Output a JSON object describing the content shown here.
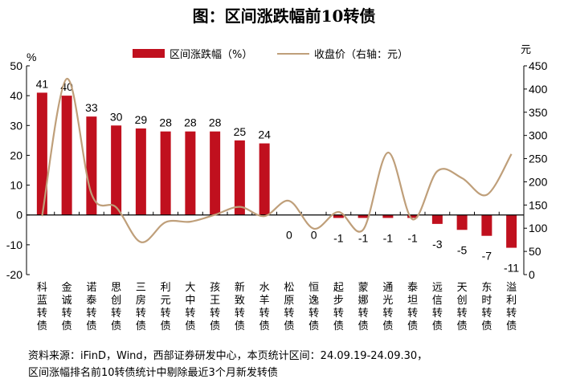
{
  "chart_data": {
    "type": "bar+line",
    "title": "图：区间涨跌幅前10转债",
    "left_unit": "%",
    "right_unit": "元",
    "categories": [
      "科蓝转债",
      "金诚转债",
      "诺泰转债",
      "思创转债",
      "三房转债",
      "利元转债",
      "大中转债",
      "孩王转债",
      "新致转债",
      "水羊转债",
      "松原转债",
      "恒逸转债",
      "起步转债",
      "蒙娜转债",
      "通光转债",
      "泰坦转债",
      "远信转债",
      "天创转债",
      "东时转债",
      "溢利转债"
    ],
    "series": [
      {
        "name": "区间涨跌幅（%）",
        "type": "bar",
        "axis": "left",
        "color": "#c0101e",
        "values": [
          41,
          40,
          33,
          30,
          29,
          28,
          28,
          28,
          25,
          24,
          0,
          0,
          -1,
          -1,
          -1,
          -1,
          -3,
          -5,
          -7,
          -11
        ]
      },
      {
        "name": "收盘价（右轴：元）",
        "type": "line",
        "axis": "right",
        "color": "#bf9f7a",
        "values": [
          126,
          422,
          174,
          145,
          70,
          113,
          114,
          129,
          146,
          126,
          159,
          99,
          135,
          97,
          263,
          119,
          223,
          208,
          172,
          260
        ]
      }
    ],
    "left_axis": {
      "min": -20,
      "max": 50,
      "ticks": [
        50,
        40,
        30,
        20,
        10,
        0,
        -10,
        -20
      ]
    },
    "right_axis": {
      "min": 0,
      "max": 450,
      "ticks": [
        450,
        400,
        350,
        300,
        250,
        200,
        150,
        100,
        50,
        0
      ]
    },
    "legend": "top",
    "grid": false
  },
  "footer": {
    "line1": "资料来源：iFinD，Wind，西部证券研发中心，本页统计区间：24.09.19-24.09.30，",
    "line2": "区间涨幅排名前10转债统计中剔除最近3个月新发转债"
  }
}
